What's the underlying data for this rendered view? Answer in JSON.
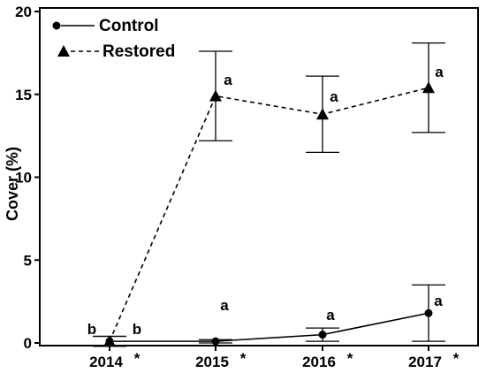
{
  "chart_data": {
    "type": "line",
    "title": "",
    "xlabel": "",
    "ylabel": "Cover (%)",
    "categories": [
      "2014",
      "2015",
      "2016",
      "2017"
    ],
    "significance_marker": "*",
    "ylim": [
      0,
      20
    ],
    "yticks": [
      0,
      5,
      10,
      15,
      20
    ],
    "grid": false,
    "legend_position": "top-left",
    "series": [
      {
        "name": "Control",
        "marker": "circle",
        "line_style": "solid",
        "values": [
          0.1,
          0.1,
          0.5,
          1.8
        ],
        "error": [
          0.3,
          0.1,
          0.4,
          1.7
        ],
        "letters": [
          "b",
          "a",
          "a",
          "a"
        ]
      },
      {
        "name": "Restored",
        "marker": "triangle",
        "line_style": "dashed",
        "values": [
          0.1,
          14.9,
          13.8,
          15.4
        ],
        "error": [
          0.3,
          2.7,
          2.3,
          2.7
        ],
        "letters": [
          "b",
          "a",
          "a",
          "a"
        ]
      }
    ]
  }
}
